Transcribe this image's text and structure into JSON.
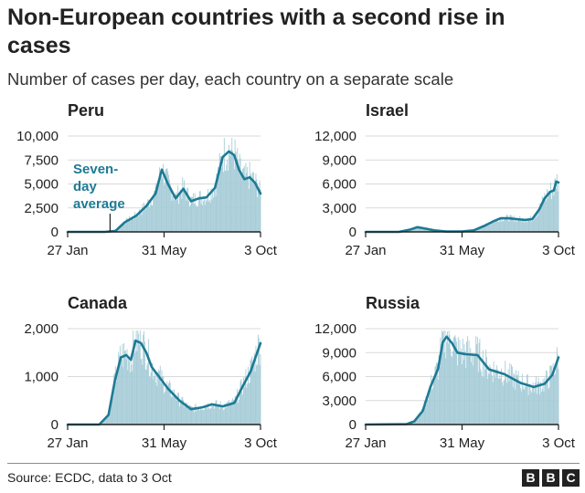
{
  "title": "Non-European countries with a second rise in cases",
  "subtitle": "Number of cases per day, each country on a separate scale",
  "source": "Source: ECDC, data to 3 Oct",
  "logo_letters": [
    "B",
    "B",
    "C"
  ],
  "colors": {
    "line": "#1d7a94",
    "bar": "#a8cdd8",
    "axis": "#222222",
    "grid": "#d9d9d9"
  },
  "chart_data": [
    {
      "type": "line",
      "title": "Peru",
      "x_ticks": [
        "27 Jan",
        "31 May",
        "3 Oct"
      ],
      "xlim": [
        "2020-01-27",
        "2020-10-03"
      ],
      "ylim": [
        0,
        10000
      ],
      "y_ticks": [
        "0",
        "2,500",
        "5,000",
        "7,500",
        "10,000"
      ],
      "y_tick_values": [
        0,
        2500,
        5000,
        7500,
        10000
      ],
      "annotation": {
        "text": [
          "Seven-",
          "day",
          "average"
        ],
        "x": "2020-03-22"
      },
      "series": [
        {
          "type": "line",
          "x": [
            "2020-01-27",
            "2020-03-15",
            "2020-03-29",
            "2020-04-10",
            "2020-04-25",
            "2020-05-08",
            "2020-05-20",
            "2020-05-28",
            "2020-06-05",
            "2020-06-15",
            "2020-06-25",
            "2020-07-05",
            "2020-07-15",
            "2020-07-25",
            "2020-08-05",
            "2020-08-15",
            "2020-08-23",
            "2020-08-30",
            "2020-09-05",
            "2020-09-12",
            "2020-09-19",
            "2020-09-26",
            "2020-10-03"
          ],
          "values": [
            0,
            0,
            100,
            1000,
            1700,
            2700,
            4000,
            6500,
            5000,
            3500,
            4500,
            3200,
            3500,
            3600,
            4600,
            7800,
            8400,
            8000,
            6500,
            5500,
            5700,
            5100,
            4000
          ]
        }
      ]
    },
    {
      "type": "line",
      "title": "Israel",
      "x_ticks": [
        "27 Jan",
        "31 May",
        "3 Oct"
      ],
      "xlim": [
        "2020-01-27",
        "2020-10-03"
      ],
      "ylim": [
        0,
        12000
      ],
      "y_ticks": [
        "0",
        "3,000",
        "6,000",
        "9,000",
        "12,000"
      ],
      "y_tick_values": [
        0,
        3000,
        6000,
        9000,
        12000
      ],
      "series": [
        {
          "type": "line",
          "x": [
            "2020-01-27",
            "2020-03-10",
            "2020-03-25",
            "2020-04-03",
            "2020-04-12",
            "2020-04-25",
            "2020-05-10",
            "2020-05-31",
            "2020-06-15",
            "2020-06-30",
            "2020-07-10",
            "2020-07-20",
            "2020-07-30",
            "2020-08-10",
            "2020-08-20",
            "2020-08-30",
            "2020-09-08",
            "2020-09-15",
            "2020-09-22",
            "2020-09-27",
            "2020-09-30",
            "2020-10-03"
          ],
          "values": [
            0,
            0,
            300,
            600,
            450,
            200,
            50,
            50,
            200,
            800,
            1300,
            1700,
            1700,
            1600,
            1500,
            1600,
            2800,
            4200,
            5000,
            5200,
            6300,
            6200
          ]
        }
      ]
    },
    {
      "type": "line",
      "title": "Canada",
      "x_ticks": [
        "27 Jan",
        "31 May",
        "3 Oct"
      ],
      "xlim": [
        "2020-01-27",
        "2020-10-03"
      ],
      "ylim": [
        0,
        2000
      ],
      "y_ticks": [
        "0",
        "1,000",
        "2,000"
      ],
      "y_tick_values": [
        0,
        1000,
        2000
      ],
      "series": [
        {
          "type": "line",
          "x": [
            "2020-01-27",
            "2020-03-08",
            "2020-03-20",
            "2020-03-28",
            "2020-04-05",
            "2020-04-12",
            "2020-04-18",
            "2020-04-24",
            "2020-05-01",
            "2020-05-08",
            "2020-05-15",
            "2020-05-22",
            "2020-06-05",
            "2020-06-20",
            "2020-07-05",
            "2020-07-20",
            "2020-08-01",
            "2020-08-15",
            "2020-08-30",
            "2020-09-10",
            "2020-09-20",
            "2020-10-03"
          ],
          "values": [
            0,
            0,
            200,
            900,
            1400,
            1450,
            1350,
            1750,
            1700,
            1500,
            1200,
            1050,
            750,
            500,
            320,
            360,
            420,
            380,
            450,
            800,
            1100,
            1700
          ]
        }
      ]
    },
    {
      "type": "line",
      "title": "Russia",
      "x_ticks": [
        "27 Jan",
        "31 May",
        "3 Oct"
      ],
      "xlim": [
        "2020-01-27",
        "2020-10-03"
      ],
      "ylim": [
        0,
        12000
      ],
      "y_ticks": [
        "0",
        "3,000",
        "6,000",
        "9,000",
        "12,000"
      ],
      "y_tick_values": [
        0,
        3000,
        6000,
        9000,
        12000
      ],
      "series": [
        {
          "type": "line",
          "x": [
            "2020-01-27",
            "2020-03-20",
            "2020-03-30",
            "2020-04-10",
            "2020-04-20",
            "2020-04-30",
            "2020-05-06",
            "2020-05-11",
            "2020-05-18",
            "2020-05-25",
            "2020-06-05",
            "2020-06-20",
            "2020-07-05",
            "2020-07-25",
            "2020-08-15",
            "2020-09-01",
            "2020-09-15",
            "2020-09-25",
            "2020-10-03"
          ],
          "values": [
            0,
            50,
            400,
            1700,
            4700,
            7000,
            10300,
            11000,
            10200,
            9000,
            8800,
            8700,
            6900,
            6300,
            5200,
            4700,
            5100,
            6200,
            8400
          ]
        }
      ]
    }
  ]
}
